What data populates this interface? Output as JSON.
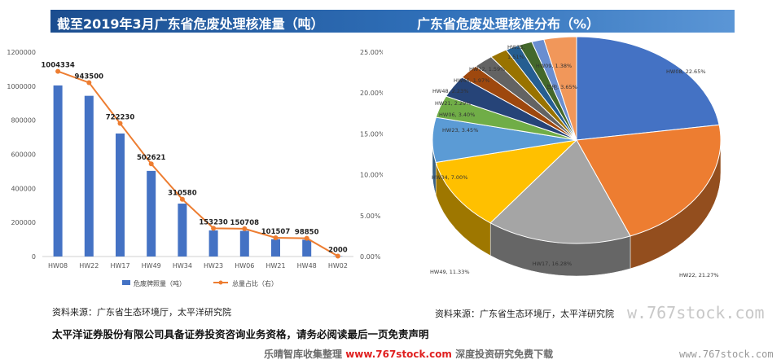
{
  "header": {
    "left_title": "截至2019年3月广东省危废处理核准量（吨）",
    "right_title": "广东省危废处理核准分布（%）"
  },
  "chart_data": [
    {
      "type": "bar",
      "categories": [
        "HW08",
        "HW22",
        "HW17",
        "HW49",
        "HW34",
        "HW23",
        "HW06",
        "HW21",
        "HW48",
        "HW02"
      ],
      "series": [
        {
          "name": "危废牌照量（吨）",
          "type": "bar",
          "axis": "left",
          "color": "#4472c4",
          "values": [
            1004334,
            943500,
            722230,
            502621,
            310580,
            153230,
            150708,
            101507,
            98850,
            2000
          ]
        },
        {
          "name": "总量占比（右）",
          "type": "line",
          "axis": "right",
          "color": "#ed7d31",
          "values": [
            22.65,
            21.27,
            16.28,
            11.33,
            7.0,
            3.45,
            3.4,
            2.29,
            2.23,
            0.05
          ]
        }
      ],
      "data_labels": [
        "1004334",
        "943500",
        "722230",
        "502621",
        "310580",
        "153230",
        "150708",
        "101507",
        "98850",
        "2000"
      ],
      "ylim": [
        0,
        1200000
      ],
      "y_ticks": [
        "0",
        "200000",
        "400000",
        "600000",
        "800000",
        "1000000",
        "1200000"
      ],
      "y2lim": [
        0,
        25
      ],
      "y2_ticks": [
        "0.00%",
        "5.00%",
        "10.00%",
        "15.00%",
        "20.00%",
        "25.00%"
      ],
      "legend_position": "bottom",
      "grid": false
    },
    {
      "type": "pie",
      "style": "3d",
      "labels": [
        "HW08",
        "HW22",
        "HW17",
        "HW49",
        "HW34",
        "HW23",
        "HW06",
        "HW21",
        "HW48",
        "HW46",
        "HW12",
        "HW35",
        "HW09",
        "其他"
      ],
      "values": [
        22.65,
        21.27,
        16.28,
        11.33,
        7.0,
        3.45,
        3.4,
        2.29,
        2.23,
        1.97,
        1.59,
        1.51,
        1.38,
        3.65
      ],
      "slice_labels": [
        "HW08, 22.65%",
        "HW22, 21.27%",
        "HW17, 16.28%",
        "HW49, 11.33%",
        "HW34, 7.00%",
        "HW23, 3.45%",
        "HW06, 3.40%",
        "HW21, 2.29%",
        "HW48, 2.23%",
        "HW46, 1.97%",
        "HW12, 1.59%",
        "1.51%",
        "HW09, 1.38%",
        "其他, 3.65%"
      ],
      "colors": [
        "#4472c4",
        "#ed7d31",
        "#a5a5a5",
        "#ffc000",
        "#5b9bd5",
        "#70ad47",
        "#264478",
        "#9e480e",
        "#636363",
        "#997300",
        "#255e91",
        "#43682b",
        "#698ed0",
        "#f1975a"
      ],
      "extra_labels": [
        "HW35,"
      ]
    }
  ],
  "source_left": "资料来源：广东省生态环境厅，太平洋研究院",
  "source_right": "资料来源：广东省生态环境厅，太平洋研究院",
  "disclaimer": "太平洋证券股份有限公司具备证券投资咨询业务资格，请务必阅读最后一页免责声明",
  "footer": {
    "left": "乐晴智库收集整理",
    "url": "www.767stock.com",
    "right": "深度投资研究免费下载"
  },
  "watermarks": [
    "w.767stock.com",
    "www.767stock.com"
  ]
}
